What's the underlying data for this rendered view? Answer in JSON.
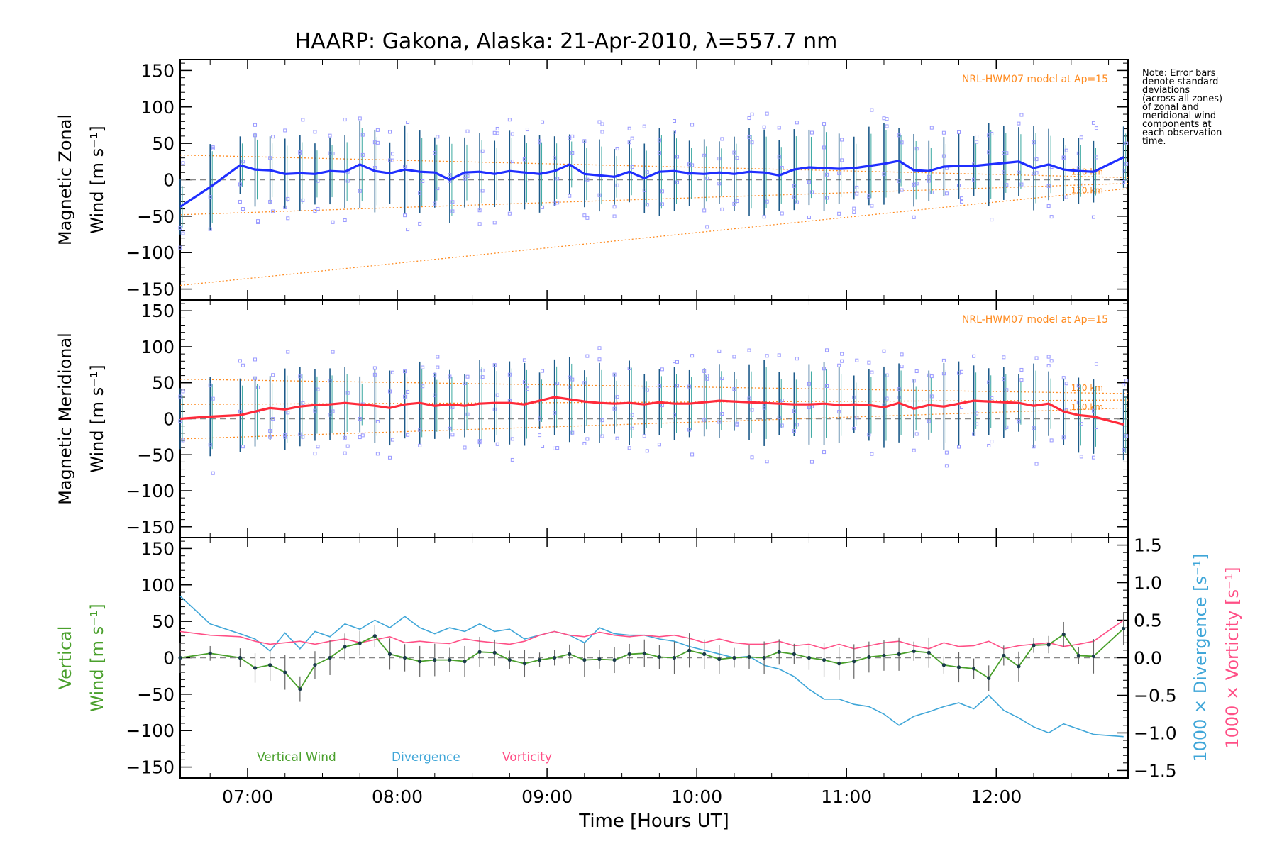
{
  "figure": {
    "title": "HAARP: Gakona,  Alaska: 21-Apr-2010, λ=557.7 nm",
    "note": [
      "Note: Error bars",
      "denote standard",
      "deviations",
      "(across all zones)",
      "of zonal and",
      "meridional wind",
      "components at",
      "each observation",
      "time."
    ],
    "xlabel": "Time [Hours UT]",
    "xticks": [
      "07:00",
      "08:00",
      "09:00",
      "10:00",
      "11:00",
      "12:00"
    ],
    "model_label": "NRL-HWM07 model at Ap=15",
    "km_labels": [
      "120 km",
      "130 km"
    ],
    "colors": {
      "zonal": "#1f2fff",
      "meridional": "#ff2a3a",
      "vertical": "#4aa02c",
      "divergence": "#3fa6d8",
      "vorticity": "#ff4f86",
      "model": "#ff8a1e",
      "zone_marker": "#9a9aff",
      "errorbar": "#1d5a8a"
    }
  },
  "chart_data": [
    {
      "type": "line",
      "panel": "zonal",
      "ylabel": "Magnetic Zonal",
      "ylabel_unit": "Wind [m s⁻¹]",
      "ylim": [
        -165,
        165
      ],
      "yticks": [
        -150,
        -100,
        -50,
        0,
        50,
        100,
        150
      ],
      "x_hours": [
        6.55,
        6.75,
        6.95,
        7.05,
        7.15,
        7.25,
        7.35,
        7.45,
        7.55,
        7.65,
        7.75,
        7.85,
        7.95,
        8.05,
        8.15,
        8.25,
        8.35,
        8.45,
        8.55,
        8.65,
        8.75,
        8.85,
        8.95,
        9.05,
        9.15,
        9.25,
        9.35,
        9.45,
        9.55,
        9.65,
        9.75,
        9.85,
        9.95,
        10.05,
        10.15,
        10.25,
        10.35,
        10.45,
        10.55,
        10.65,
        10.75,
        10.85,
        10.95,
        11.05,
        11.15,
        11.25,
        11.35,
        11.45,
        11.55,
        11.65,
        11.75,
        11.85,
        11.95,
        12.05,
        12.15,
        12.25,
        12.35,
        12.45,
        12.55,
        12.65,
        12.85
      ],
      "series": [
        {
          "key": "zonal",
          "values": [
            -37,
            -10,
            20,
            14,
            13,
            8,
            9,
            8,
            12,
            11,
            21,
            12,
            9,
            14,
            11,
            10,
            0,
            10,
            11,
            8,
            12,
            10,
            8,
            12,
            21,
            8,
            6,
            4,
            11,
            2,
            11,
            12,
            9,
            8,
            10,
            8,
            11,
            10,
            6,
            14,
            17,
            16,
            15,
            16,
            19,
            22,
            26,
            13,
            12,
            18,
            19,
            19,
            21,
            23,
            25,
            16,
            21,
            14,
            12,
            11,
            31
          ]
        }
      ],
      "errorbar_sd": 45,
      "model_lines": [
        [
          34,
          3
        ],
        [
          -48,
          -5
        ],
        [
          -145,
          -12
        ]
      ]
    },
    {
      "type": "line",
      "panel": "meridional",
      "ylabel": "Magnetic Meridional",
      "ylabel_unit": "Wind [m s⁻¹]",
      "ylim": [
        -165,
        165
      ],
      "yticks": [
        -150,
        -100,
        -50,
        0,
        50,
        100,
        150
      ],
      "x_hours": [
        6.55,
        6.75,
        6.95,
        7.05,
        7.15,
        7.25,
        7.35,
        7.45,
        7.55,
        7.65,
        7.75,
        7.85,
        7.95,
        8.05,
        8.15,
        8.25,
        8.35,
        8.45,
        8.55,
        8.65,
        8.75,
        8.85,
        8.95,
        9.05,
        9.15,
        9.25,
        9.35,
        9.45,
        9.55,
        9.65,
        9.75,
        9.85,
        9.95,
        10.05,
        10.15,
        10.25,
        10.35,
        10.45,
        10.55,
        10.65,
        10.75,
        10.85,
        10.95,
        11.05,
        11.15,
        11.25,
        11.35,
        11.45,
        11.55,
        11.65,
        11.75,
        11.85,
        11.95,
        12.05,
        12.15,
        12.25,
        12.35,
        12.45,
        12.55,
        12.65,
        12.85
      ],
      "series": [
        {
          "key": "meridional",
          "values": [
            0,
            3,
            5,
            10,
            15,
            13,
            17,
            19,
            20,
            22,
            20,
            18,
            15,
            20,
            22,
            18,
            20,
            18,
            21,
            22,
            22,
            20,
            25,
            30,
            27,
            24,
            22,
            21,
            22,
            20,
            23,
            21,
            21,
            23,
            25,
            24,
            23,
            22,
            21,
            20,
            20,
            21,
            19,
            20,
            19,
            16,
            22,
            14,
            19,
            17,
            21,
            25,
            24,
            23,
            22,
            18,
            21,
            10,
            5,
            3,
            -8
          ]
        }
      ],
      "errorbar_sd": 45,
      "model_lines": [
        [
          55,
          35
        ],
        [
          20,
          26
        ],
        [
          -28,
          15
        ]
      ]
    },
    {
      "type": "line",
      "panel": "vertical",
      "ylabel": "Vertical",
      "ylabel_unit": "Wind [m s⁻¹]",
      "ylim": [
        -165,
        165
      ],
      "yticks": [
        -150,
        -100,
        -50,
        0,
        50,
        100,
        150
      ],
      "y2label_div": "1000 × Divergence [s⁻¹]",
      "y2label_vort": "1000 × Vorticity [s⁻¹]",
      "y2lim": [
        -1.6,
        1.6
      ],
      "y2ticks": [
        "1.5",
        "1.0",
        "0.5",
        "0.0",
        "−0.5",
        "−1.0",
        "−1.5"
      ],
      "legend": [
        "Vertical Wind",
        "Divergence",
        "Vorticity"
      ],
      "x_hours": [
        6.55,
        6.75,
        6.95,
        7.05,
        7.15,
        7.25,
        7.35,
        7.45,
        7.55,
        7.65,
        7.75,
        7.85,
        7.95,
        8.05,
        8.15,
        8.25,
        8.35,
        8.45,
        8.55,
        8.65,
        8.75,
        8.85,
        8.95,
        9.05,
        9.15,
        9.25,
        9.35,
        9.45,
        9.55,
        9.65,
        9.75,
        9.85,
        9.95,
        10.05,
        10.15,
        10.25,
        10.35,
        10.45,
        10.55,
        10.65,
        10.75,
        10.85,
        10.95,
        11.05,
        11.15,
        11.25,
        11.35,
        11.45,
        11.55,
        11.65,
        11.75,
        11.85,
        11.95,
        12.05,
        12.15,
        12.25,
        12.35,
        12.45,
        12.55,
        12.65,
        12.85
      ],
      "series": [
        {
          "key": "vertical",
          "values": [
            0,
            6,
            0,
            -14,
            -10,
            -20,
            -43,
            -10,
            0,
            15,
            20,
            30,
            5,
            0,
            -5,
            -3,
            -3,
            -5,
            8,
            7,
            -3,
            -8,
            -3,
            0,
            5,
            -3,
            -2,
            -3,
            5,
            6,
            1,
            0,
            10,
            5,
            -2,
            0,
            1,
            0,
            8,
            5,
            0,
            -3,
            -8,
            -5,
            1,
            3,
            5,
            9,
            7,
            -10,
            -13,
            -15,
            -28,
            3,
            -12,
            17,
            18,
            32,
            3,
            2,
            40
          ]
        },
        {
          "key": "divergence",
          "values": [
            0.82,
            0.45,
            0.32,
            0.25,
            0.09,
            0.33,
            0.12,
            0.35,
            0.28,
            0.45,
            0.38,
            0.5,
            0.4,
            0.55,
            0.4,
            0.32,
            0.4,
            0.35,
            0.45,
            0.35,
            0.38,
            0.25,
            0.3,
            0.35,
            0.3,
            0.2,
            0.4,
            0.32,
            0.3,
            0.3,
            0.25,
            0.22,
            0.15,
            0.1,
            0.05,
            0.0,
            0.02,
            -0.1,
            -0.15,
            -0.25,
            -0.42,
            -0.55,
            -0.55,
            -0.62,
            -0.65,
            -0.75,
            -0.9,
            -0.78,
            -0.72,
            -0.65,
            -0.6,
            -0.68,
            -0.5,
            -0.7,
            -0.8,
            -0.92,
            -1.0,
            -0.88,
            -0.95,
            -1.02,
            -1.05
          ]
        },
        {
          "key": "vorticity",
          "values": [
            0.35,
            0.3,
            0.28,
            0.22,
            0.18,
            0.2,
            0.22,
            0.18,
            0.22,
            0.25,
            0.2,
            0.24,
            0.28,
            0.2,
            0.22,
            0.2,
            0.19,
            0.25,
            0.22,
            0.2,
            0.18,
            0.22,
            0.3,
            0.35,
            0.3,
            0.28,
            0.34,
            0.3,
            0.28,
            0.3,
            0.28,
            0.3,
            0.26,
            0.2,
            0.25,
            0.2,
            0.18,
            0.18,
            0.22,
            0.16,
            0.18,
            0.12,
            0.18,
            0.12,
            0.16,
            0.2,
            0.22,
            0.16,
            0.12,
            0.2,
            0.15,
            0.16,
            0.22,
            0.12,
            0.16,
            0.18,
            0.2,
            0.15,
            0.18,
            0.22,
            0.5
          ]
        }
      ]
    }
  ]
}
